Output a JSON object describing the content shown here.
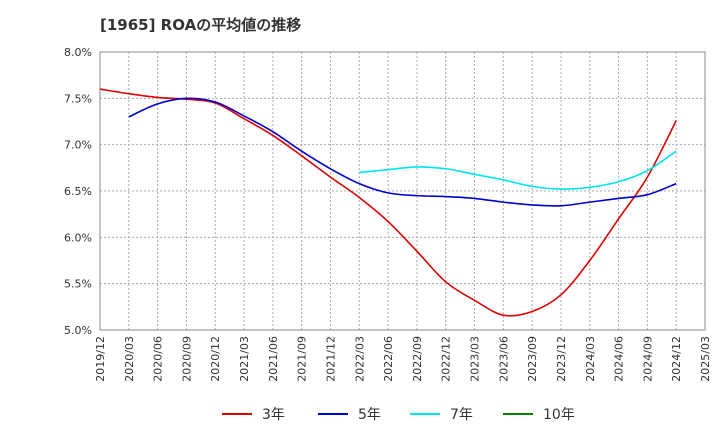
{
  "chart_data": {
    "type": "line",
    "title": "[1965]  ROAの平均値の推移",
    "xlabel": "",
    "ylabel": "",
    "x": [
      "2019/12",
      "2020/03",
      "2020/06",
      "2020/09",
      "2020/12",
      "2021/03",
      "2021/06",
      "2021/09",
      "2021/12",
      "2022/03",
      "2022/06",
      "2022/09",
      "2022/12",
      "2023/03",
      "2023/06",
      "2023/09",
      "2023/12",
      "2024/03",
      "2024/06",
      "2024/09",
      "2024/12",
      "2025/03"
    ],
    "y_ticks": [
      "5.0%",
      "5.5%",
      "6.0%",
      "6.5%",
      "7.0%",
      "7.5%",
      "8.0%"
    ],
    "ylim": [
      5.0,
      8.0
    ],
    "grid": true,
    "legend_position": "bottom",
    "series": [
      {
        "name": "3年",
        "color": "#dd0000",
        "values": [
          7.6,
          7.55,
          7.51,
          7.49,
          7.45,
          7.28,
          7.1,
          6.88,
          6.65,
          6.43,
          6.17,
          5.85,
          5.52,
          5.32,
          5.16,
          5.2,
          5.38,
          5.75,
          6.2,
          6.65,
          7.26,
          null
        ]
      },
      {
        "name": "5年",
        "color": "#0000cc",
        "values": [
          null,
          7.3,
          7.44,
          7.5,
          7.46,
          7.31,
          7.14,
          6.93,
          6.74,
          6.58,
          6.48,
          6.45,
          6.44,
          6.42,
          6.38,
          6.35,
          6.34,
          6.38,
          6.42,
          6.46,
          6.58,
          null
        ]
      },
      {
        "name": "7年",
        "color": "#00e5ee",
        "values": [
          null,
          null,
          null,
          null,
          null,
          null,
          null,
          null,
          null,
          6.7,
          6.73,
          6.76,
          6.74,
          6.68,
          6.62,
          6.55,
          6.52,
          6.54,
          6.6,
          6.72,
          6.93,
          null
        ]
      },
      {
        "name": "10年",
        "color": "#008000",
        "values": [
          null,
          null,
          null,
          null,
          null,
          null,
          null,
          null,
          null,
          null,
          null,
          null,
          null,
          null,
          null,
          null,
          null,
          null,
          null,
          null,
          null,
          null
        ]
      }
    ]
  }
}
